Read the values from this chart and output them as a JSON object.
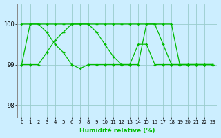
{
  "xlabel": "Humidité relative (%)",
  "background_color": "#cceeff",
  "grid_color": "#99cccc",
  "line_color": "#00bb00",
  "xlim": [
    -0.5,
    23.5
  ],
  "ylim": [
    97.7,
    100.5
  ],
  "yticks": [
    98,
    99,
    100
  ],
  "xticks": [
    0,
    1,
    2,
    3,
    4,
    5,
    6,
    7,
    8,
    9,
    10,
    11,
    12,
    13,
    14,
    15,
    16,
    17,
    18,
    19,
    20,
    21,
    22,
    23
  ],
  "series": [
    [
      99,
      100,
      100,
      100,
      100,
      100,
      100,
      100,
      100,
      100,
      100,
      100,
      100,
      100,
      100,
      100,
      100,
      100,
      100,
      99,
      99,
      99,
      99,
      99
    ],
    [
      99,
      99,
      99,
      99.3,
      99.6,
      99.8,
      100,
      100,
      100,
      99.8,
      99.5,
      99.2,
      99,
      99,
      99,
      100,
      100,
      99.5,
      99,
      99,
      99,
      99,
      99,
      99
    ],
    [
      100,
      100,
      100,
      99.8,
      99.5,
      99.3,
      99.0,
      98.9,
      99.0,
      99.0,
      99.0,
      99,
      99,
      99,
      99.5,
      99.5,
      99,
      99,
      99,
      99,
      99,
      99,
      99,
      99
    ]
  ]
}
